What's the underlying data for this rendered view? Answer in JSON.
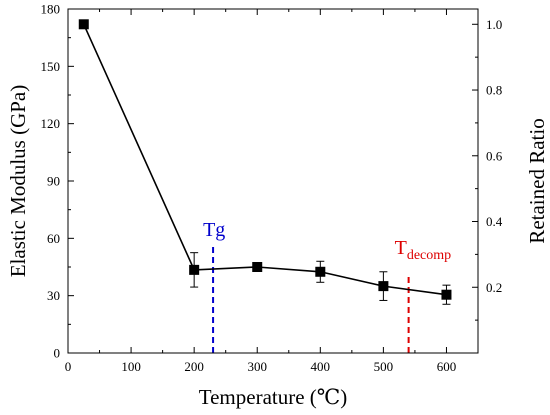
{
  "chart_data": {
    "type": "line",
    "x": [
      25,
      200,
      300,
      400,
      500,
      600
    ],
    "series": [
      {
        "values": [
          172,
          43.5,
          45,
          42.5,
          35,
          30.5
        ],
        "error": [
          0,
          9,
          0,
          5.5,
          7.5,
          5
        ]
      }
    ],
    "xlabel": "Temperature (℃)",
    "ylabel": "Elastic Modulus (GPa)",
    "y2label": "Retained Ratio",
    "xlim": [
      0,
      650
    ],
    "ylim": [
      0,
      180
    ],
    "y2lim": [
      0,
      1.0465
    ],
    "x_ticks": [
      0,
      100,
      200,
      300,
      400,
      500,
      600
    ],
    "y_ticks": [
      0,
      30,
      60,
      90,
      120,
      150,
      180
    ],
    "y2_ticks": [
      0.2,
      0.4,
      0.6,
      0.8,
      1.0
    ],
    "y2_tick_labels": [
      "0.2",
      "0.4",
      "0.6",
      "0.8",
      "1.0"
    ],
    "grid": false,
    "annotations": [
      {
        "text": "Tg",
        "subscript": "",
        "x": 230,
        "color": "#0000cc"
      },
      {
        "text": "T",
        "subscript": "decomp",
        "x": 540,
        "color": "#dd0000"
      }
    ],
    "colors": {
      "series": "#000000",
      "frame": "#000000"
    }
  }
}
